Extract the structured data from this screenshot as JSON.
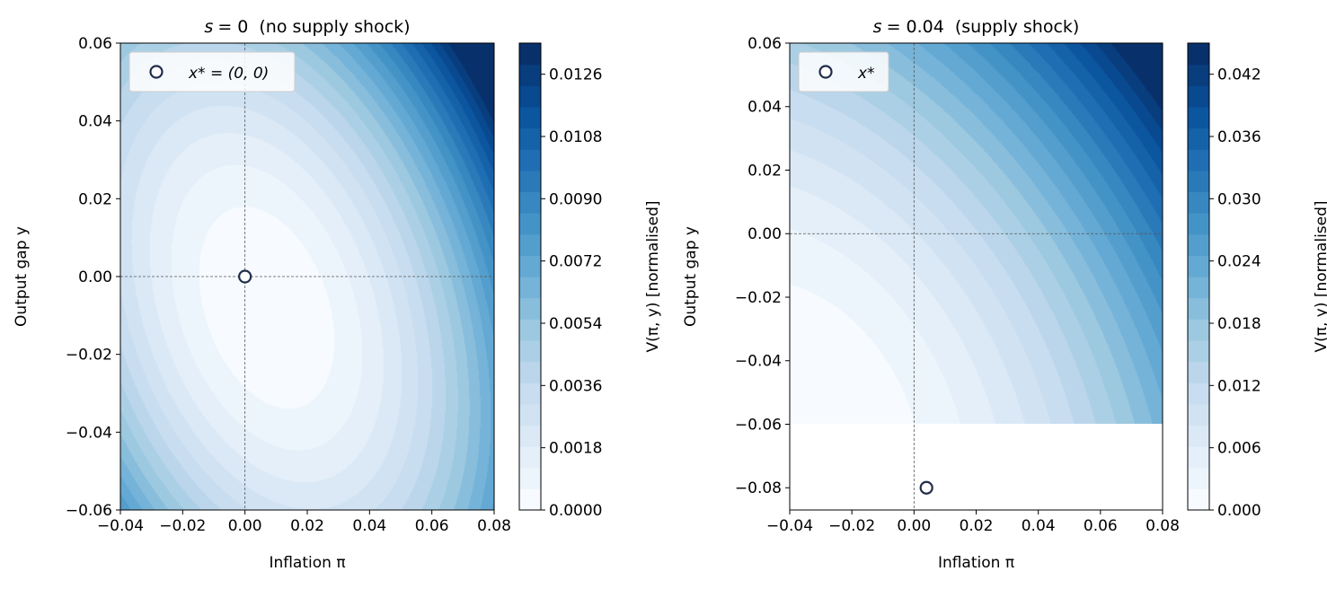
{
  "chart_data": [
    {
      "type": "contour",
      "title": "s = 0  (no supply shock)",
      "title_var": "s",
      "title_value": "= 0",
      "title_desc": "(no supply shock)",
      "xlabel": "Inflation π",
      "ylabel": "Output gap y",
      "xlim": [
        -0.04,
        0.08
      ],
      "ylim": [
        -0.06,
        0.06
      ],
      "xticks": [
        "−0.04",
        "−0.02",
        "0.00",
        "0.02",
        "0.04",
        "0.06",
        "0.08"
      ],
      "yticks": [
        "−0.06",
        "−0.04",
        "−0.02",
        "0.00",
        "0.02",
        "0.04",
        "0.06"
      ],
      "colormap": "Blues",
      "colorbar": {
        "label": "V(π, y)  [normalised]",
        "ticks": [
          "0.0000",
          "0.0018",
          "0.0036",
          "0.0054",
          "0.0072",
          "0.0090",
          "0.0108",
          "0.0126"
        ],
        "range": [
          0,
          0.0135
        ],
        "levels": 22
      },
      "field": {
        "apply_s": 0,
        "center": [
          0.007,
          -0.008
        ],
        "a": 1.0,
        "b": 0.7,
        "c": 0.55
      },
      "reference_lines": {
        "x": 0,
        "y": 0
      },
      "marker": {
        "x": 0,
        "y": 0
      },
      "legend": {
        "label": "x* = (0, 0)",
        "placement": "upper left"
      },
      "grid": false
    },
    {
      "type": "contour",
      "title": "s = 0.04  (supply shock)",
      "title_var": "s",
      "title_value": "= 0.04",
      "title_desc": "(supply shock)",
      "xlabel": "Inflation π",
      "ylabel": "Output gap y",
      "xlim": [
        -0.04,
        0.08
      ],
      "ylim": [
        -0.087,
        0.06
      ],
      "field_ylim": [
        -0.06,
        0.06
      ],
      "xticks": [
        "−0.04",
        "−0.02",
        "0.00",
        "0.02",
        "0.04",
        "0.06",
        "0.08"
      ],
      "yticks": [
        "−0.08",
        "−0.06",
        "−0.04",
        "−0.02",
        "0.00",
        "0.02",
        "0.04",
        "0.06"
      ],
      "colormap": "Blues",
      "colorbar": {
        "label": "V(π, y)  [normalised]",
        "ticks": [
          "0.000",
          "0.006",
          "0.012",
          "0.018",
          "0.024",
          "0.030",
          "0.036",
          "0.042"
        ],
        "range": [
          0,
          0.045
        ],
        "levels": 22
      },
      "field": {
        "apply_s": 1,
        "center": [
          -0.035,
          -0.06
        ],
        "a": 1.0,
        "b": 0.7,
        "c": 0.55
      },
      "reference_lines": {
        "x": 0,
        "y": 0
      },
      "marker": {
        "x": 0.004,
        "y": -0.08
      },
      "legend": {
        "label": "x*",
        "placement": "upper left"
      },
      "grid": false
    }
  ],
  "colors": {
    "cmap": [
      "#f7fbff",
      "#deebf7",
      "#c6dbef",
      "#9ecae1",
      "#6baed6",
      "#4292c6",
      "#2171b5",
      "#08519c",
      "#08306b"
    ],
    "marker_edge": "#1f2d4a",
    "refline": "#555555"
  }
}
